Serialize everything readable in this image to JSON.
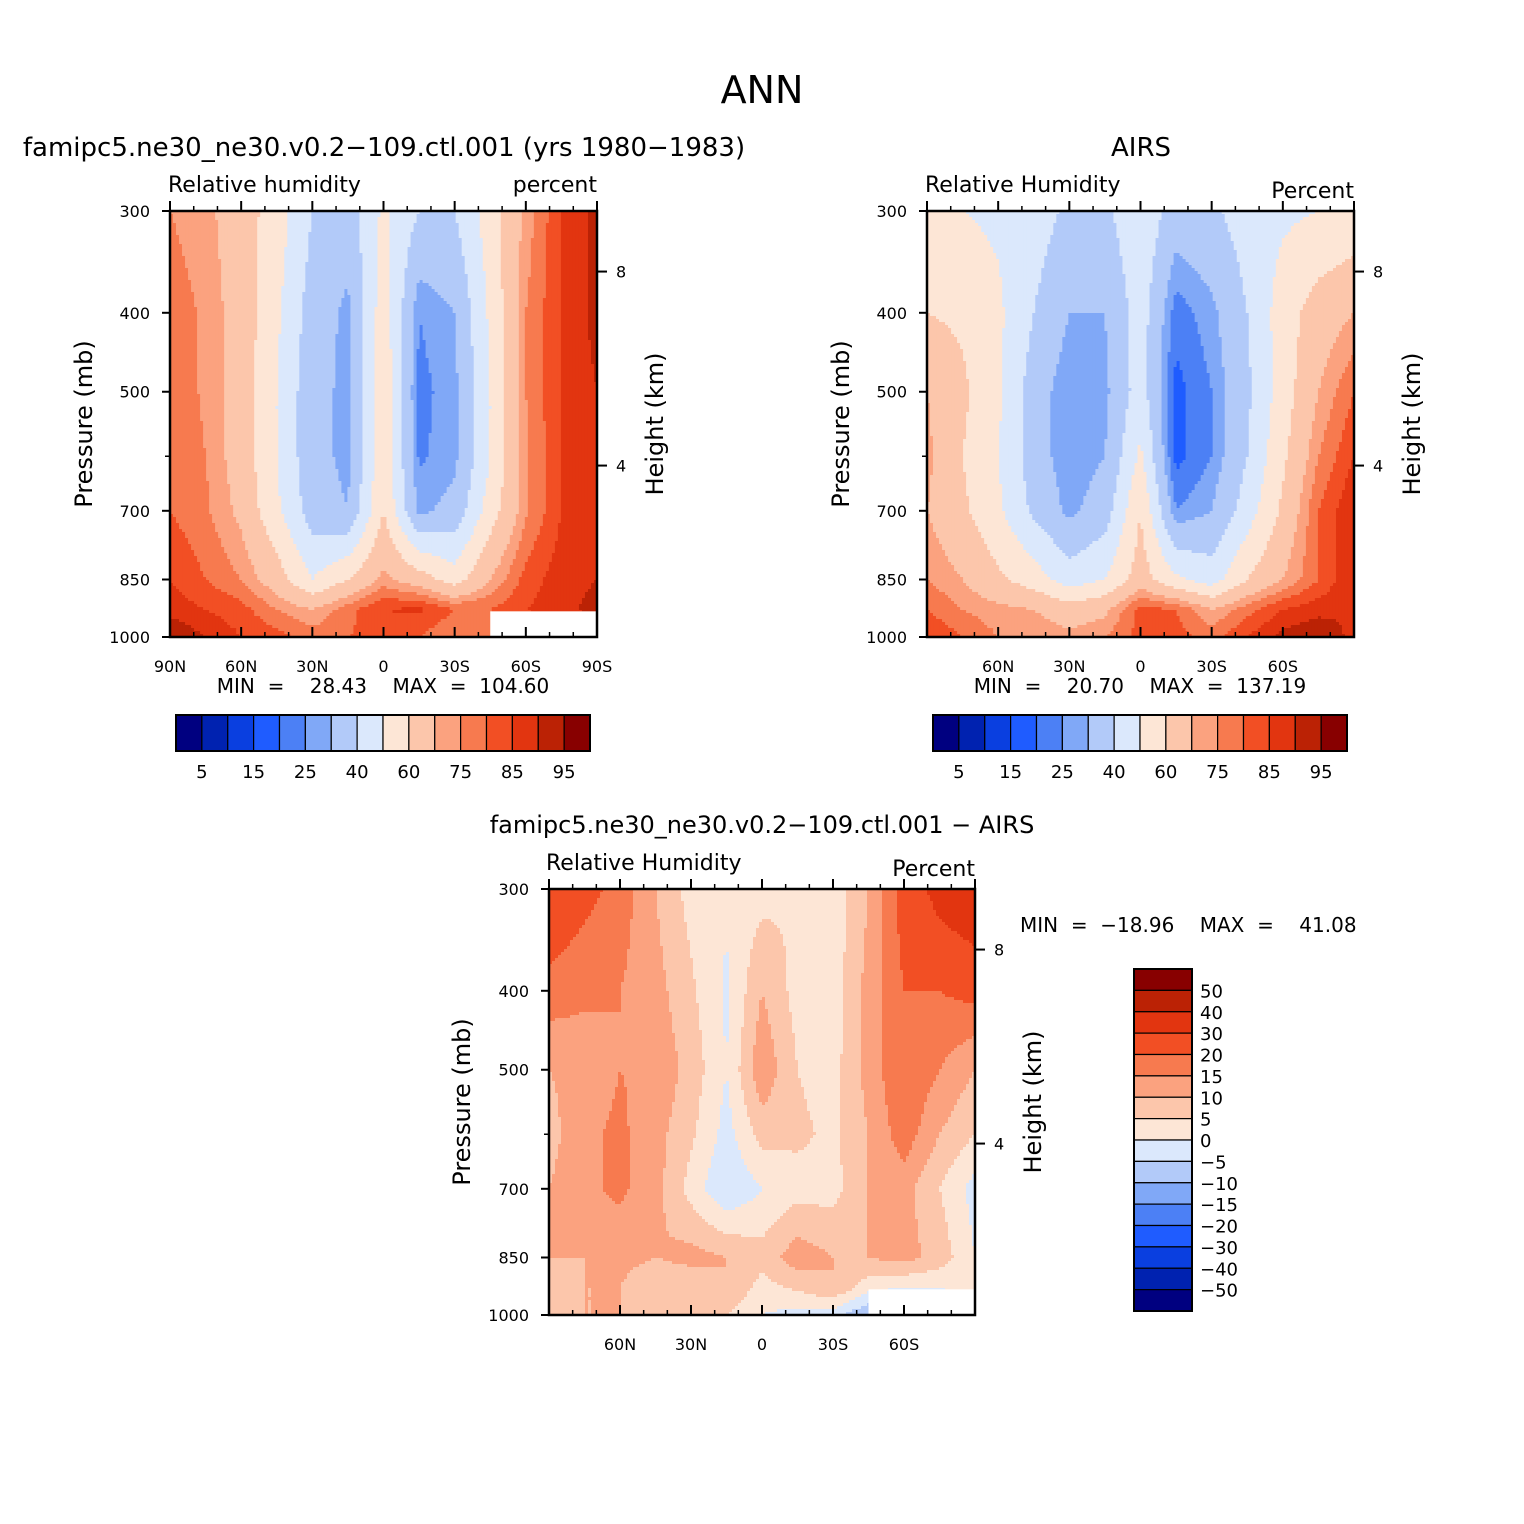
{
  "page_title": "ANN",
  "palette": [
    "#000080",
    "#0022b0",
    "#0a3fe0",
    "#1f5cff",
    "#4c80f5",
    "#80a8f7",
    "#b2caf9",
    "#dbe8fc",
    "#fde6d6",
    "#fcc6ab",
    "#fba27f",
    "#f77a4f",
    "#f24f24",
    "#e23510",
    "#bb2205",
    "#880000"
  ],
  "chart_data": [
    {
      "type": "heatmap",
      "title": "famipc5.ne30_ne30.v0.2−109.ctl.001  (yrs  1980−1983)",
      "left_label": "Relative  humidity",
      "right_label": "percent",
      "ylabel": "Pressure  (mb)",
      "y2label": "Height  (km)",
      "xticks": [
        "90N",
        "60N",
        "30N",
        "0",
        "30S",
        "60S",
        "90S"
      ],
      "yticks": [
        "300",
        "400",
        "500",
        "700",
        "850",
        "1000"
      ],
      "y2ticks": [
        "8",
        "4"
      ],
      "stats": "MIN  =    28.43    MAX  =  104.60",
      "colorbar_labels": [
        "5",
        "15",
        "25",
        "40",
        "60",
        "75",
        "85",
        "95"
      ],
      "levels": [
        5,
        10,
        15,
        20,
        25,
        30,
        40,
        50,
        60,
        70,
        75,
        80,
        85,
        90,
        95
      ],
      "x": [
        90,
        75,
        60,
        45,
        30,
        15,
        0,
        -15,
        -30,
        -45,
        -60,
        -75,
        -90
      ],
      "p": [
        300,
        400,
        500,
        600,
        700,
        850,
        925,
        1000
      ],
      "z": [
        [
          75,
          72,
          65,
          55,
          40,
          35,
          52,
          40,
          40,
          55,
          72,
          85,
          92
        ],
        [
          78,
          74,
          66,
          52,
          35,
          28,
          56,
          25,
          30,
          52,
          75,
          85,
          92
        ],
        [
          79,
          74,
          66,
          50,
          33,
          28,
          58,
          23,
          28,
          50,
          75,
          85,
          90
        ],
        [
          80,
          75,
          66,
          50,
          33,
          28,
          58,
          24,
          28,
          50,
          74,
          85,
          90
        ],
        [
          80,
          76,
          68,
          52,
          35,
          30,
          60,
          28,
          33,
          55,
          74,
          85,
          88
        ],
        [
          85,
          80,
          75,
          65,
          50,
          60,
          72,
          65,
          55,
          70,
          82,
          88,
          90
        ],
        [
          88,
          85,
          82,
          75,
          70,
          78,
          85,
          86,
          80,
          80,
          85,
          88,
          92
        ],
        [
          95,
          90,
          85,
          82,
          78,
          80,
          82,
          80,
          75,
          75,
          80,
          85,
          90
        ]
      ],
      "blank_region": {
        "lat_from": -45,
        "lat_to": -90,
        "p_from": 930
      },
      "colorbar": "horizontal"
    },
    {
      "type": "heatmap",
      "title": "AIRS",
      "left_label": "Relative  Humidity",
      "right_label": "Percent",
      "ylabel": "Pressure  (mb)",
      "y2label": "Height  (km)",
      "xticks": [
        "",
        "60N",
        "30N",
        "0",
        "30S",
        "60S",
        ""
      ],
      "yticks": [
        "300",
        "400",
        "500",
        "700",
        "850",
        "1000"
      ],
      "y2ticks": [
        "8",
        "4"
      ],
      "stats": "MIN  =    20.70    MAX  =  137.19",
      "colorbar_labels": [
        "5",
        "15",
        "25",
        "40",
        "60",
        "75",
        "85",
        "95"
      ],
      "levels": [
        5,
        10,
        15,
        20,
        25,
        30,
        40,
        50,
        60,
        70,
        75,
        80,
        85,
        90,
        95
      ],
      "x": [
        90,
        75,
        60,
        45,
        30,
        15,
        0,
        -15,
        -30,
        -45,
        -60,
        -75,
        -90
      ],
      "p": [
        300,
        400,
        500,
        600,
        700,
        850,
        925,
        1000
      ],
      "z": [
        [
          50,
          50,
          48,
          45,
          38,
          38,
          48,
          35,
          38,
          45,
          48,
          50,
          52
        ],
        [
          60,
          58,
          52,
          40,
          30,
          30,
          45,
          22,
          28,
          40,
          55,
          65,
          70
        ],
        [
          70,
          62,
          52,
          35,
          25,
          28,
          45,
          18,
          25,
          38,
          55,
          70,
          80
        ],
        [
          72,
          60,
          50,
          35,
          25,
          30,
          52,
          18,
          25,
          40,
          58,
          75,
          85
        ],
        [
          70,
          62,
          52,
          38,
          28,
          35,
          60,
          25,
          30,
          45,
          62,
          80,
          90
        ],
        [
          75,
          70,
          62,
          55,
          45,
          50,
          65,
          52,
          45,
          60,
          70,
          80,
          90
        ],
        [
          80,
          75,
          72,
          70,
          65,
          68,
          82,
          80,
          70,
          78,
          85,
          88,
          90
        ],
        [
          85,
          80,
          75,
          75,
          72,
          75,
          82,
          82,
          78,
          85,
          92,
          95,
          88
        ]
      ],
      "colorbar": "horizontal"
    },
    {
      "type": "heatmap",
      "title": "famipc5.ne30_ne30.v0.2−109.ctl.001  −  AIRS",
      "left_label": "Relative  Humidity",
      "right_label": "Percent",
      "ylabel": "Pressure  (mb)",
      "y2label": "Height  (km)",
      "xticks": [
        "",
        "60N",
        "30N",
        "0",
        "30S",
        "60S",
        ""
      ],
      "yticks": [
        "300",
        "400",
        "500",
        "700",
        "850",
        "1000"
      ],
      "y2ticks": [
        "8",
        "4"
      ],
      "stats": "MIN  =  −18.96    MAX  =    41.08",
      "colorbar_labels": [
        "50",
        "40",
        "30",
        "20",
        "15",
        "10",
        "5",
        "0",
        "−5",
        "−10",
        "−15",
        "−20",
        "−30",
        "−40",
        "−50"
      ],
      "levels": [
        -50,
        -40,
        -30,
        -20,
        -15,
        -10,
        -5,
        0,
        5,
        10,
        15,
        20,
        30,
        40,
        50
      ],
      "x": [
        90,
        75,
        60,
        45,
        30,
        15,
        0,
        -15,
        -30,
        -45,
        -60,
        -75,
        -90
      ],
      "p": [
        300,
        400,
        500,
        600,
        700,
        850,
        925,
        1000
      ],
      "z": [
        [
          26,
          22,
          18,
          10,
          3,
          1,
          3,
          5,
          2,
          10,
          23,
          34,
          40
        ],
        [
          18,
          16,
          15,
          12,
          6,
          -1,
          10,
          3,
          2,
          12,
          20,
          20,
          22
        ],
        [
          10,
          12,
          15,
          14,
          8,
          0,
          14,
          5,
          3,
          12,
          20,
          15,
          10
        ],
        [
          8,
          14,
          16,
          12,
          6,
          -2,
          7,
          6,
          4,
          10,
          18,
          10,
          5
        ],
        [
          10,
          14,
          16,
          12,
          3,
          -5,
          0,
          3,
          3,
          10,
          12,
          5,
          -2
        ],
        [
          10,
          10,
          12,
          10,
          12,
          10,
          7,
          13,
          10,
          10,
          12,
          8,
          0
        ],
        [
          8,
          10,
          10,
          5,
          5,
          10,
          3,
          6,
          10,
          2,
          0,
          0,
          4
        ],
        [
          10,
          10,
          10,
          7,
          6,
          5,
          0,
          -2,
          -3,
          -10,
          -12,
          -10,
          2
        ]
      ],
      "blank_region": {
        "lat_from": -45,
        "lat_to": -90,
        "p_from": 930
      },
      "colorbar": "vertical"
    }
  ]
}
